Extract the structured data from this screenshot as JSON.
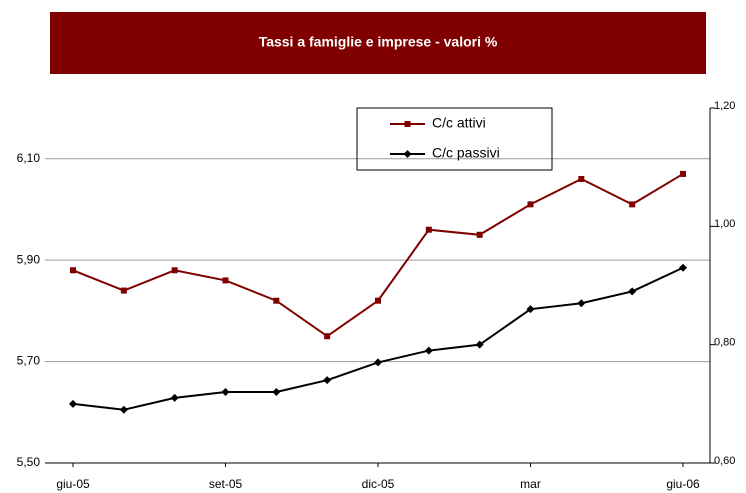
{
  "chart_data": {
    "type": "line",
    "title": "Tassi a famiglie e imprese - valori %",
    "categories": [
      "giu-05",
      null,
      null,
      "set-05",
      null,
      null,
      "dic-05",
      null,
      null,
      "mar",
      null,
      null,
      "giu-06"
    ],
    "series": [
      {
        "name": "C/c attivi",
        "color": "#800000",
        "marker": "square",
        "axis": "y",
        "values": [
          5.88,
          5.84,
          5.88,
          5.86,
          5.82,
          5.75,
          5.82,
          5.96,
          5.95,
          6.01,
          6.06,
          6.01,
          6.07
        ]
      },
      {
        "name": "C/c passivi",
        "color": "#000000",
        "marker": "diamond",
        "axis": "y2",
        "values": [
          0.7,
          0.69,
          0.71,
          0.72,
          0.72,
          0.74,
          0.77,
          0.79,
          0.8,
          0.86,
          0.87,
          0.89,
          0.93
        ]
      }
    ],
    "ylim": [
      5.5,
      6.2
    ],
    "yticks": [
      {
        "value": 5.5,
        "label": "5,50"
      },
      {
        "value": 5.7,
        "label": "5,70"
      },
      {
        "value": 5.9,
        "label": "5,90"
      },
      {
        "value": 6.1,
        "label": "6,10"
      }
    ],
    "y2lim": [
      0.6,
      1.2
    ],
    "y2ticks": [
      {
        "value": 0.6,
        "label": "0,60"
      },
      {
        "value": 0.8,
        "label": "0,80"
      },
      {
        "value": 1.0,
        "label": "1,00"
      },
      {
        "value": 1.2,
        "label": "1,20"
      }
    ],
    "grid": true
  }
}
